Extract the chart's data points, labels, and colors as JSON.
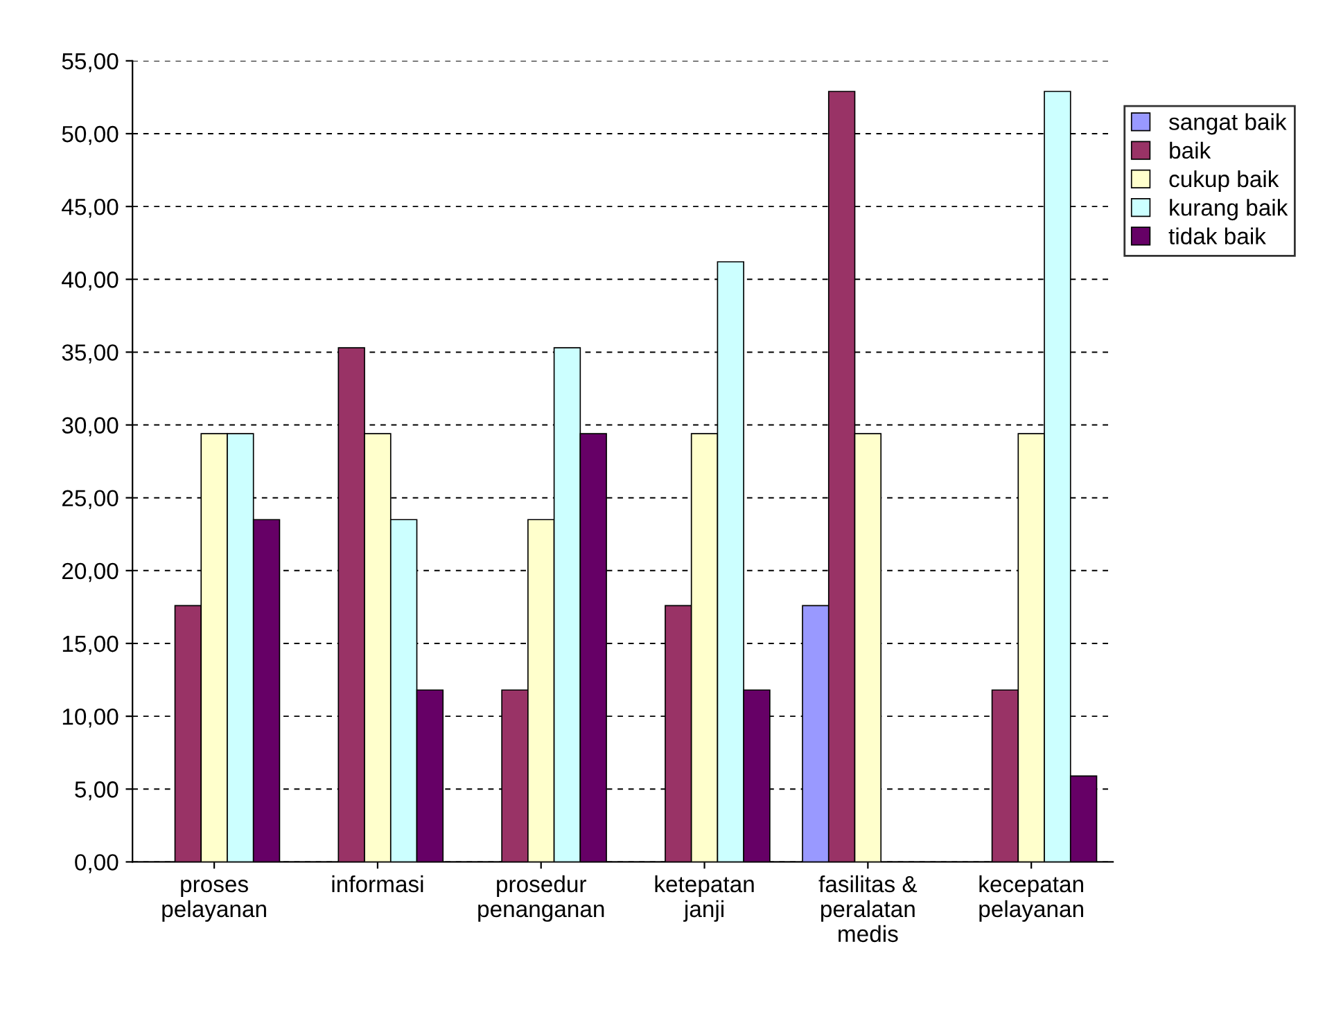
{
  "chart_data": {
    "type": "bar",
    "categories": [
      "proses\npelayanan",
      "informasi",
      "prosedur\npenanganan",
      "ketepatan\njanji",
      "fasilitas &\nperalatan\nmedis",
      "kecepatan\npelayanan"
    ],
    "series": [
      {
        "name": "sangat baik",
        "color": "#9999ff",
        "values": [
          null,
          null,
          null,
          null,
          17.6,
          null
        ]
      },
      {
        "name": "baik",
        "color": "#993366",
        "values": [
          17.6,
          35.3,
          11.8,
          17.6,
          52.9,
          11.8
        ]
      },
      {
        "name": "cukup baik",
        "color": "#ffffcc",
        "values": [
          29.4,
          29.4,
          23.5,
          29.4,
          29.4,
          29.4
        ]
      },
      {
        "name": "kurang baik",
        "color": "#ccffff",
        "values": [
          29.4,
          23.5,
          35.3,
          41.2,
          null,
          52.9
        ]
      },
      {
        "name": "tidak baik",
        "color": "#660066",
        "values": [
          23.5,
          11.8,
          29.4,
          11.8,
          null,
          5.9
        ]
      }
    ],
    "ylim": [
      0,
      55
    ],
    "yticks": [
      {
        "value": 0,
        "label": "0,00"
      },
      {
        "value": 5,
        "label": "5,00"
      },
      {
        "value": 10,
        "label": "10,00"
      },
      {
        "value": 15,
        "label": "15,00"
      },
      {
        "value": 20,
        "label": "20,00"
      },
      {
        "value": 25,
        "label": "25,00"
      },
      {
        "value": 30,
        "label": "30,00"
      },
      {
        "value": 35,
        "label": "35,00"
      },
      {
        "value": 40,
        "label": "40,00"
      },
      {
        "value": 45,
        "label": "45,00"
      },
      {
        "value": 50,
        "label": "50,00"
      },
      {
        "value": 55,
        "label": "55,00"
      }
    ],
    "grid": "y",
    "legend": "right"
  }
}
